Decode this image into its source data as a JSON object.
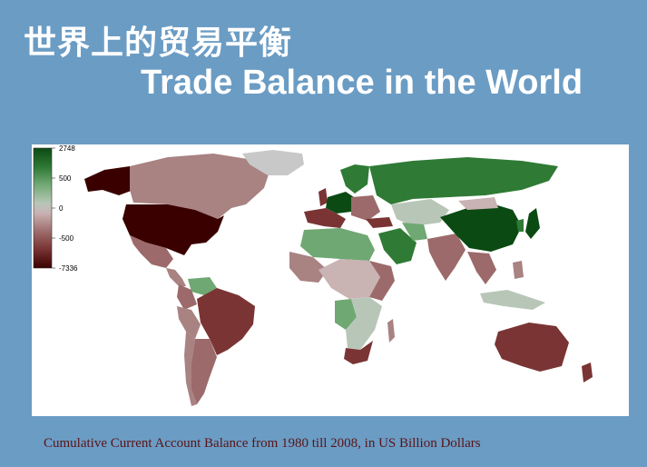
{
  "title": {
    "chinese": "世界上的贸易平衡",
    "english": "Trade Balance in the World"
  },
  "caption": "Cumulative Current Account Balance from 1980 till 2008, in US Billion Dollars",
  "legend": {
    "ticks": [
      "2748",
      "500",
      "0",
      "-500",
      "-7336"
    ],
    "stops": [
      "#0b4a12",
      "#2f7a35",
      "#6fa872",
      "#b8c6b8",
      "#c9b3b3",
      "#9c6a6a",
      "#7a3434",
      "#3a0000"
    ]
  },
  "colors": {
    "background": "#6b9cc4",
    "ocean": "#ffffff",
    "strong_surplus": "#0b4a12",
    "surplus": "#2f7a35",
    "mild_surplus": "#6fa872",
    "neutral": "#c8c8c8",
    "mild_deficit": "#a98282",
    "deficit": "#7a3434",
    "strong_deficit": "#3a0000"
  }
}
